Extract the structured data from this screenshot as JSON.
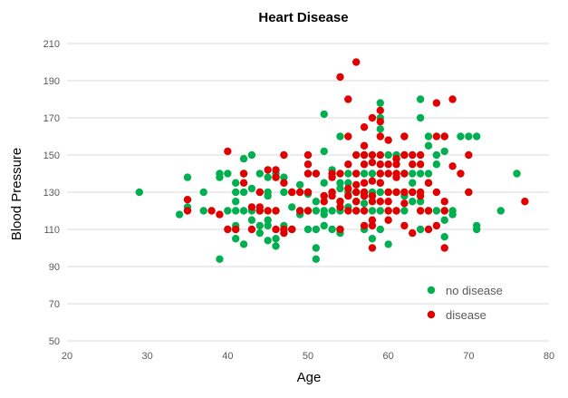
{
  "chart_data": {
    "type": "scatter",
    "title": "Heart Disease",
    "xlabel": "Age",
    "ylabel": "Blood Pressure",
    "xlim": [
      20,
      80
    ],
    "ylim": [
      50,
      210
    ],
    "xticks": [
      20,
      30,
      40,
      50,
      60,
      70,
      80
    ],
    "yticks": [
      50,
      70,
      90,
      110,
      130,
      150,
      170,
      190,
      210
    ],
    "grid": "horizontal",
    "legend_position": "bottom-right",
    "series": [
      {
        "name": "no disease",
        "color": "#00b050",
        "points": [
          [
            29,
            130
          ],
          [
            34,
            118
          ],
          [
            35,
            122
          ],
          [
            35,
            138
          ],
          [
            37,
            120
          ],
          [
            37,
            130
          ],
          [
            39,
            94
          ],
          [
            39,
            138
          ],
          [
            39,
            140
          ],
          [
            40,
            140
          ],
          [
            40,
            120
          ],
          [
            41,
            135
          ],
          [
            41,
            130
          ],
          [
            41,
            125
          ],
          [
            41,
            120
          ],
          [
            41,
            112
          ],
          [
            41,
            105
          ],
          [
            41,
            110
          ],
          [
            42,
            148
          ],
          [
            42,
            140
          ],
          [
            42,
            130
          ],
          [
            42,
            120
          ],
          [
            42,
            102
          ],
          [
            43,
            150
          ],
          [
            43,
            132
          ],
          [
            43,
            120
          ],
          [
            43,
            115
          ],
          [
            44,
            140
          ],
          [
            44,
            130
          ],
          [
            44,
            120
          ],
          [
            44,
            112
          ],
          [
            44,
            108
          ],
          [
            45,
            138
          ],
          [
            45,
            130
          ],
          [
            45,
            128
          ],
          [
            45,
            115
          ],
          [
            45,
            112
          ],
          [
            45,
            104
          ],
          [
            46,
            140
          ],
          [
            46,
            138
          ],
          [
            46,
            120
          ],
          [
            46,
            105
          ],
          [
            46,
            101
          ],
          [
            47,
            138
          ],
          [
            47,
            130
          ],
          [
            47,
            112
          ],
          [
            48,
            130
          ],
          [
            48,
            122
          ],
          [
            48,
            110
          ],
          [
            49,
            134
          ],
          [
            49,
            130
          ],
          [
            49,
            118
          ],
          [
            49,
            120
          ],
          [
            50,
            140
          ],
          [
            50,
            130
          ],
          [
            50,
            129
          ],
          [
            50,
            120
          ],
          [
            50,
            110
          ],
          [
            51,
            140
          ],
          [
            51,
            125
          ],
          [
            51,
            120
          ],
          [
            51,
            110
          ],
          [
            51,
            100
          ],
          [
            51,
            94
          ],
          [
            52,
            172
          ],
          [
            52,
            152
          ],
          [
            52,
            135
          ],
          [
            52,
            128
          ],
          [
            52,
            120
          ],
          [
            52,
            118
          ],
          [
            52,
            112
          ],
          [
            53,
            142
          ],
          [
            53,
            130
          ],
          [
            53,
            120
          ],
          [
            53,
            110
          ],
          [
            54,
            160
          ],
          [
            54,
            135
          ],
          [
            54,
            132
          ],
          [
            54,
            125
          ],
          [
            54,
            120
          ],
          [
            54,
            110
          ],
          [
            54,
            108
          ],
          [
            55,
            140
          ],
          [
            55,
            135
          ],
          [
            55,
            130
          ],
          [
            55,
            128
          ],
          [
            55,
            122
          ],
          [
            56,
            140
          ],
          [
            56,
            130
          ],
          [
            56,
            125
          ],
          [
            56,
            120
          ],
          [
            57,
            150
          ],
          [
            57,
            140
          ],
          [
            57,
            130
          ],
          [
            57,
            128
          ],
          [
            57,
            124
          ],
          [
            57,
            120
          ],
          [
            57,
            110
          ],
          [
            58,
            140
          ],
          [
            58,
            130
          ],
          [
            58,
            128
          ],
          [
            58,
            120
          ],
          [
            58,
            105
          ],
          [
            59,
            178
          ],
          [
            59,
            170
          ],
          [
            59,
            164
          ],
          [
            59,
            140
          ],
          [
            59,
            135
          ],
          [
            59,
            130
          ],
          [
            59,
            120
          ],
          [
            59,
            110
          ],
          [
            60,
            150
          ],
          [
            60,
            140
          ],
          [
            60,
            130
          ],
          [
            60,
            120
          ],
          [
            60,
            102
          ],
          [
            61,
            150
          ],
          [
            61,
            148
          ],
          [
            61,
            130
          ],
          [
            61,
            120
          ],
          [
            62,
            160
          ],
          [
            62,
            150
          ],
          [
            62,
            140
          ],
          [
            62,
            130
          ],
          [
            62,
            128
          ],
          [
            62,
            120
          ],
          [
            63,
            140
          ],
          [
            63,
            135
          ],
          [
            63,
            130
          ],
          [
            63,
            125
          ],
          [
            64,
            180
          ],
          [
            64,
            170
          ],
          [
            64,
            140
          ],
          [
            64,
            125
          ],
          [
            64,
            110
          ],
          [
            65,
            160
          ],
          [
            65,
            155
          ],
          [
            65,
            140
          ],
          [
            65,
            135
          ],
          [
            65,
            120
          ],
          [
            66,
            150
          ],
          [
            66,
            145
          ],
          [
            66,
            120
          ],
          [
            67,
            160
          ],
          [
            67,
            152
          ],
          [
            67,
            120
          ],
          [
            67,
            115
          ],
          [
            67,
            106
          ],
          [
            68,
            120
          ],
          [
            68,
            118
          ],
          [
            69,
            160
          ],
          [
            70,
            160
          ],
          [
            70,
            130
          ],
          [
            71,
            160
          ],
          [
            71,
            112
          ],
          [
            71,
            110
          ],
          [
            74,
            120
          ],
          [
            76,
            140
          ]
        ]
      },
      {
        "name": "disease",
        "color": "#e00000",
        "points": [
          [
            35,
            126
          ],
          [
            35,
            120
          ],
          [
            38,
            120
          ],
          [
            39,
            118
          ],
          [
            40,
            152
          ],
          [
            40,
            110
          ],
          [
            41,
            110
          ],
          [
            42,
            140
          ],
          [
            42,
            135
          ],
          [
            43,
            122
          ],
          [
            43,
            110
          ],
          [
            44,
            130
          ],
          [
            44,
            122
          ],
          [
            44,
            120
          ],
          [
            45,
            142
          ],
          [
            45,
            120
          ],
          [
            46,
            142
          ],
          [
            46,
            138
          ],
          [
            46,
            120
          ],
          [
            46,
            110
          ],
          [
            47,
            150
          ],
          [
            47,
            135
          ],
          [
            47,
            110
          ],
          [
            47,
            108
          ],
          [
            48,
            130
          ],
          [
            48,
            110
          ],
          [
            49,
            120
          ],
          [
            49,
            130
          ],
          [
            50,
            150
          ],
          [
            50,
            145
          ],
          [
            50,
            140
          ],
          [
            50,
            130
          ],
          [
            50,
            120
          ],
          [
            51,
            140
          ],
          [
            52,
            128
          ],
          [
            52,
            125
          ],
          [
            53,
            140
          ],
          [
            53,
            138
          ],
          [
            53,
            130
          ],
          [
            53,
            128
          ],
          [
            54,
            192
          ],
          [
            54,
            140
          ],
          [
            54,
            125
          ],
          [
            54,
            122
          ],
          [
            54,
            110
          ],
          [
            55,
            180
          ],
          [
            55,
            160
          ],
          [
            55,
            145
          ],
          [
            55,
            132
          ],
          [
            55,
            128
          ],
          [
            55,
            120
          ],
          [
            56,
            200
          ],
          [
            56,
            150
          ],
          [
            56,
            140
          ],
          [
            56,
            134
          ],
          [
            56,
            130
          ],
          [
            56,
            125
          ],
          [
            56,
            120
          ],
          [
            57,
            165
          ],
          [
            57,
            155
          ],
          [
            57,
            150
          ],
          [
            57,
            145
          ],
          [
            57,
            135
          ],
          [
            57,
            130
          ],
          [
            57,
            128
          ],
          [
            57,
            120
          ],
          [
            57,
            112
          ],
          [
            58,
            170
          ],
          [
            58,
            150
          ],
          [
            58,
            146
          ],
          [
            58,
            136
          ],
          [
            58,
            128
          ],
          [
            58,
            125
          ],
          [
            58,
            115
          ],
          [
            58,
            112
          ],
          [
            58,
            100
          ],
          [
            59,
            174
          ],
          [
            59,
            168
          ],
          [
            59,
            160
          ],
          [
            59,
            150
          ],
          [
            59,
            145
          ],
          [
            59,
            140
          ],
          [
            59,
            135
          ],
          [
            59,
            125
          ],
          [
            60,
            158
          ],
          [
            60,
            145
          ],
          [
            60,
            140
          ],
          [
            60,
            130
          ],
          [
            60,
            125
          ],
          [
            60,
            120
          ],
          [
            60,
            115
          ],
          [
            61,
            148
          ],
          [
            61,
            145
          ],
          [
            61,
            140
          ],
          [
            61,
            138
          ],
          [
            61,
            130
          ],
          [
            61,
            120
          ],
          [
            62,
            160
          ],
          [
            62,
            150
          ],
          [
            62,
            140
          ],
          [
            62,
            130
          ],
          [
            62,
            124
          ],
          [
            62,
            112
          ],
          [
            63,
            150
          ],
          [
            63,
            145
          ],
          [
            63,
            130
          ],
          [
            63,
            108
          ],
          [
            64,
            150
          ],
          [
            64,
            145
          ],
          [
            64,
            130
          ],
          [
            64,
            128
          ],
          [
            64,
            120
          ],
          [
            65,
            135
          ],
          [
            65,
            110
          ],
          [
            65,
            120
          ],
          [
            66,
            178
          ],
          [
            66,
            160
          ],
          [
            66,
            130
          ],
          [
            66,
            112
          ],
          [
            67,
            160
          ],
          [
            67,
            125
          ],
          [
            67,
            120
          ],
          [
            67,
            100
          ],
          [
            68,
            180
          ],
          [
            68,
            144
          ],
          [
            69,
            140
          ],
          [
            70,
            150
          ],
          [
            70,
            130
          ],
          [
            77,
            125
          ]
        ]
      }
    ]
  }
}
